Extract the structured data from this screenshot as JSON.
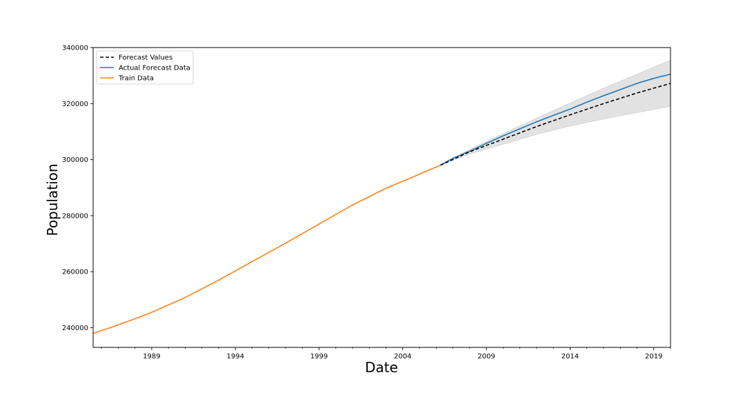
{
  "chart_data": {
    "type": "line",
    "title": "",
    "xlabel": "Date",
    "ylabel": "Population",
    "xlim": [
      1985.5,
      2020.0
    ],
    "ylim": [
      233000,
      340000
    ],
    "x_ticks": [
      1989,
      1994,
      1999,
      2004,
      2009,
      2014,
      2019
    ],
    "x_tick_labels": [
      "1989",
      "1994",
      "1999",
      "2004",
      "2009",
      "2014",
      "2019"
    ],
    "y_ticks": [
      240000,
      260000,
      280000,
      300000,
      320000,
      340000
    ],
    "y_tick_labels": [
      "240000",
      "260000",
      "280000",
      "300000",
      "320000",
      "340000"
    ],
    "grid": false,
    "legend_position": "top-left",
    "series": [
      {
        "name": "Forecast Values",
        "color": "#000000",
        "style": "dashed",
        "x": [
          2006.25,
          2008,
          2010,
          2012,
          2014,
          2016,
          2018,
          2020
        ],
        "values": [
          298000,
          302800,
          307300,
          311800,
          316000,
          320000,
          323800,
          327200
        ]
      },
      {
        "name": "Actual Forecast Data",
        "color": "#1f77b4",
        "style": "solid",
        "x": [
          2006.25,
          2007,
          2008,
          2009,
          2010,
          2011,
          2012,
          2013,
          2014,
          2015,
          2016,
          2017,
          2018,
          2019,
          2020
        ],
        "values": [
          298000,
          300500,
          303000,
          305800,
          308500,
          311000,
          313500,
          315800,
          318000,
          320500,
          322800,
          325000,
          327200,
          329000,
          330500
        ]
      },
      {
        "name": "Train Data",
        "color": "#ff7f0e",
        "style": "solid",
        "x": [
          1985.5,
          1987,
          1989,
          1991,
          1993,
          1995,
          1997,
          1999,
          2001,
          2003,
          2005,
          2006.25
        ],
        "values": [
          238000,
          241000,
          245500,
          250800,
          257000,
          263600,
          270200,
          277000,
          283800,
          289800,
          294800,
          298000
        ]
      }
    ],
    "confidence_band": {
      "color": "#d3d3d3",
      "x": [
        2006.25,
        2008,
        2010,
        2012,
        2014,
        2016,
        2018,
        2020
      ],
      "lower": [
        298000,
        302000,
        305500,
        309000,
        312000,
        314500,
        316800,
        319000
      ],
      "upper": [
        298000,
        303700,
        309300,
        314800,
        320200,
        325500,
        330500,
        335500
      ]
    }
  }
}
